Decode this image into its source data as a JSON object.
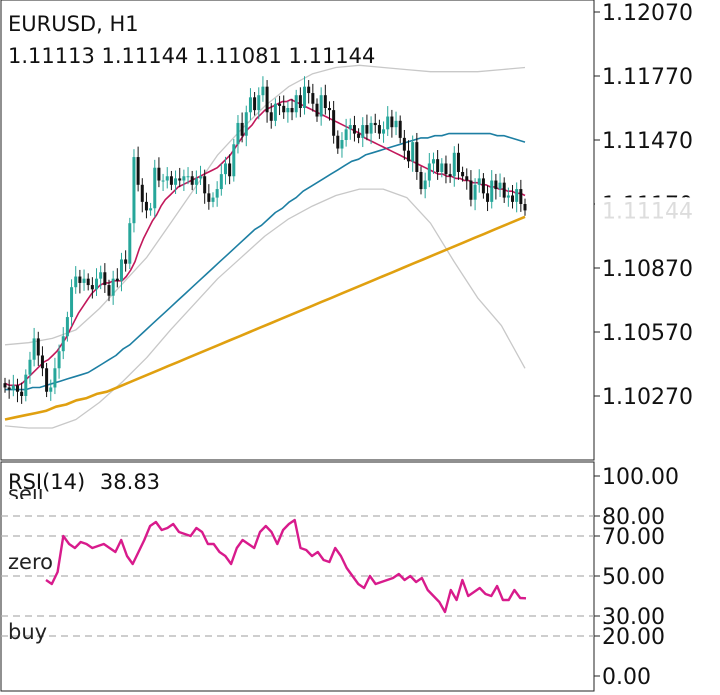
{
  "header": {
    "symbol": "EURUSD, H1",
    "ohlc": "1.11113 1.11144 1.11081 1.11144"
  },
  "price_axis": {
    "ticks": [
      "1.12070",
      "1.11770",
      "1.11470",
      "1.11170",
      "1.10870",
      "1.10570",
      "1.10270"
    ],
    "current_price_label": "1.11144",
    "current_price_color": "#ffffff"
  },
  "rsi_panel": {
    "title": "RSI(14)",
    "value": "38.83",
    "ticks": [
      "100.00",
      "80.00",
      "70.00",
      "50.00",
      "30.00",
      "20.00",
      "0.00"
    ],
    "zones": {
      "sell": "sell",
      "zero": "zero",
      "buy": "buy"
    }
  },
  "colors": {
    "bull_candle": "#26a69a",
    "bear_candle": "#111111",
    "ma_fast": "#c2185b",
    "ma_mid": "#1d7fa3",
    "ma_slow": "#e0a010",
    "bands": "#c8c8c8",
    "rsi_line": "#d81b8c",
    "levels": "#b0b0b0"
  },
  "chart_data": [
    {
      "type": "candlestick",
      "symbol": "EURUSD",
      "timeframe": "H1",
      "ylim": [
        1.1003,
        1.1218
      ],
      "y_ticks": [
        1.1207,
        1.1177,
        1.1147,
        1.1117,
        1.1087,
        1.1057,
        1.1027
      ],
      "close": [
        1.1031,
        1.103,
        1.1032,
        1.1029,
        1.1027,
        1.1037,
        1.1044,
        1.1054,
        1.1046,
        1.104,
        1.1029,
        1.1031,
        1.104,
        1.1048,
        1.1055,
        1.1064,
        1.1078,
        1.1083,
        1.108,
        1.1082,
        1.1079,
        1.1077,
        1.1082,
        1.1085,
        1.1079,
        1.1074,
        1.1082,
        1.1081,
        1.1091,
        1.1089,
        1.1108,
        1.1139,
        1.1126,
        1.1118,
        1.1114,
        1.1115,
        1.1134,
        1.1128,
        1.1128,
        1.113,
        1.1126,
        1.1129,
        1.1128,
        1.113,
        1.113,
        1.1126,
        1.1129,
        1.113,
        1.1122,
        1.1118,
        1.112,
        1.1124,
        1.1131,
        1.1136,
        1.113,
        1.1145,
        1.1155,
        1.1149,
        1.116,
        1.1167,
        1.1161,
        1.1168,
        1.1172,
        1.116,
        1.1156,
        1.1164,
        1.1163,
        1.116,
        1.1162,
        1.116,
        1.1168,
        1.1162,
        1.1172,
        1.1169,
        1.1164,
        1.1158,
        1.1168,
        1.1162,
        1.1161,
        1.1149,
        1.1143,
        1.1147,
        1.1152,
        1.1154,
        1.115,
        1.1148,
        1.1154,
        1.115,
        1.1155,
        1.1154,
        1.115,
        1.1152,
        1.1158,
        1.1153,
        1.1156,
        1.1148,
        1.1142,
        1.1137,
        1.1146,
        1.1132,
        1.1124,
        1.1128,
        1.1136,
        1.1138,
        1.1132,
        1.1136,
        1.1131,
        1.113,
        1.1141,
        1.1132,
        1.113,
        1.1128,
        1.1119,
        1.1126,
        1.1129,
        1.1122,
        1.1118,
        1.1128,
        1.1124,
        1.1127,
        1.112,
        1.1121,
        1.1118,
        1.1124,
        1.1117,
        1.1114
      ],
      "ma_fast": [
        1.1033,
        1.1032,
        1.1032,
        1.1032,
        1.1033,
        1.1035,
        1.1037,
        1.1039,
        1.1041,
        1.1043,
        1.1044,
        1.1046,
        1.1048,
        1.1051,
        1.1054,
        1.1058,
        1.1062,
        1.1066,
        1.1069,
        1.1072,
        1.1075,
        1.1077,
        1.1079,
        1.108,
        1.108,
        1.1081,
        1.1081,
        1.1081,
        1.1083,
        1.1086,
        1.109,
        1.1096,
        1.1101,
        1.1105,
        1.1109,
        1.1112,
        1.1116,
        1.1119,
        1.1121,
        1.1123,
        1.1125,
        1.1126,
        1.1127,
        1.1128,
        1.1129,
        1.113,
        1.1131,
        1.1132,
        1.1133,
        1.1134,
        1.1136,
        1.1138,
        1.114,
        1.1143,
        1.1146,
        1.1149,
        1.1152,
        1.1154,
        1.1157,
        1.1159,
        1.1161,
        1.1162,
        1.1163,
        1.1164,
        1.1165,
        1.1165,
        1.1166,
        1.1165,
        1.1164,
        1.1163,
        1.1162,
        1.1161,
        1.116,
        1.1159,
        1.1158,
        1.1157,
        1.1156,
        1.1155,
        1.1154,
        1.1153,
        1.1152,
        1.1151,
        1.115,
        1.1148,
        1.1147,
        1.1146,
        1.1145,
        1.1144,
        1.1143,
        1.1142,
        1.1141,
        1.114,
        1.1139,
        1.1138,
        1.1137,
        1.1136,
        1.1135,
        1.1134,
        1.1133,
        1.1132,
        1.1131,
        1.1131,
        1.113,
        1.113,
        1.1129,
        1.1129,
        1.1128,
        1.1128,
        1.1127,
        1.1127,
        1.1126,
        1.1126,
        1.1125,
        1.1125,
        1.1124,
        1.1124,
        1.1123,
        1.1123,
        1.1122,
        1.1122,
        1.1121
      ],
      "ma_mid": [
        1.103,
        1.103,
        1.103,
        1.103,
        1.1031,
        1.1031,
        1.1032,
        1.1033,
        1.1034,
        1.1035,
        1.1036,
        1.1037,
        1.1038,
        1.104,
        1.1042,
        1.1044,
        1.1046,
        1.1049,
        1.1051,
        1.1054,
        1.1057,
        1.106,
        1.1063,
        1.1066,
        1.1069,
        1.1072,
        1.1075,
        1.1078,
        1.1081,
        1.1084,
        1.1087,
        1.109,
        1.1093,
        1.1096,
        1.1099,
        1.1102,
        1.1105,
        1.1107,
        1.111,
        1.1113,
        1.1115,
        1.1118,
        1.112,
        1.1123,
        1.1125,
        1.1127,
        1.1129,
        1.1131,
        1.1133,
        1.1135,
        1.1137,
        1.1138,
        1.114,
        1.1141,
        1.1142,
        1.1143,
        1.1144,
        1.1145,
        1.1146,
        1.1147,
        1.1148,
        1.1148,
        1.1149,
        1.1149,
        1.115,
        1.115,
        1.115,
        1.115,
        1.115,
        1.115,
        1.115,
        1.1149,
        1.1149,
        1.1148,
        1.1147,
        1.1146
      ],
      "ma_slow": [
        1.1016,
        1.1017,
        1.1018,
        1.1019,
        1.102,
        1.1022,
        1.1023,
        1.1025,
        1.1026,
        1.1028,
        1.1029,
        1.1031,
        1.1033,
        1.1035,
        1.1037,
        1.1039,
        1.1041,
        1.1043,
        1.1045,
        1.1047,
        1.1049,
        1.1051,
        1.1053,
        1.1055,
        1.1057,
        1.1059,
        1.1061,
        1.1063,
        1.1065,
        1.1067,
        1.1069,
        1.1071,
        1.1073,
        1.1075,
        1.1077,
        1.1079,
        1.1081,
        1.1083,
        1.1085,
        1.1087,
        1.1089,
        1.1091,
        1.1093,
        1.1095,
        1.1097,
        1.1099,
        1.1101,
        1.1103,
        1.1105,
        1.1107,
        1.1109,
        1.1111
      ],
      "bollinger_upper": [
        1.1051,
        1.1052,
        1.1054,
        1.1058,
        1.1068,
        1.108,
        1.1092,
        1.1108,
        1.1124,
        1.114,
        1.1152,
        1.1163,
        1.1172,
        1.1178,
        1.1181,
        1.1182,
        1.1181,
        1.118,
        1.1179,
        1.1179,
        1.1179,
        1.118,
        1.1181
      ],
      "bollinger_lower": [
        1.1013,
        1.1012,
        1.1012,
        1.1016,
        1.1024,
        1.1034,
        1.1045,
        1.1058,
        1.107,
        1.1082,
        1.1092,
        1.1102,
        1.111,
        1.1116,
        1.1121,
        1.1124,
        1.1124,
        1.112,
        1.1108,
        1.109,
        1.1073,
        1.106,
        1.104
      ]
    },
    {
      "type": "line",
      "name": "RSI(14)",
      "ylim": [
        0,
        100
      ],
      "y_ticks": [
        100,
        80,
        70,
        50,
        30,
        20,
        0
      ],
      "levels": [
        80,
        70,
        50,
        30,
        20
      ],
      "values": [
        48,
        46,
        52,
        70,
        66,
        64,
        67,
        66,
        64,
        65,
        66,
        64,
        62,
        68,
        60,
        56,
        62,
        68,
        75,
        77,
        73,
        74,
        76,
        72,
        71,
        70,
        74,
        72,
        66,
        66,
        62,
        60,
        56,
        64,
        68,
        66,
        64,
        72,
        75,
        72,
        66,
        73,
        76,
        78,
        64,
        63,
        60,
        62,
        58,
        57,
        64,
        60,
        54,
        50,
        46,
        44,
        50,
        46,
        47,
        48,
        49,
        51,
        48,
        50,
        47,
        49,
        43,
        40,
        37,
        32,
        43,
        38,
        48,
        40,
        42,
        44,
        41,
        40,
        45,
        38,
        38,
        43,
        39,
        38.83
      ]
    }
  ]
}
